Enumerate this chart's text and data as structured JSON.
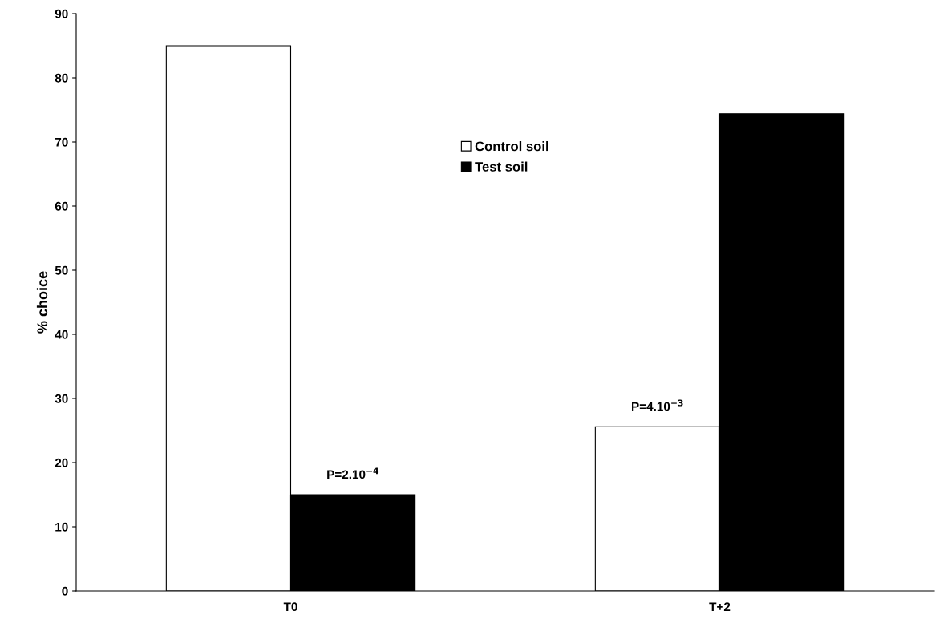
{
  "chart_data": {
    "type": "bar",
    "ylabel": "% choice",
    "categories": [
      "T0",
      "T+2"
    ],
    "series": [
      {
        "name": "Control soil",
        "color": "#ffffff",
        "values": [
          85,
          25.6
        ]
      },
      {
        "name": "Test soil",
        "color": "#000000",
        "values": [
          15,
          74.4
        ]
      }
    ],
    "ylim": [
      0,
      90
    ],
    "yticks": [
      0,
      10,
      20,
      30,
      40,
      50,
      60,
      70,
      80,
      90
    ],
    "annotations": [
      "P=2.10$^{−4}$",
      "P=4.10$^{−3}$"
    ],
    "legend": "top",
    "grid": false
  }
}
